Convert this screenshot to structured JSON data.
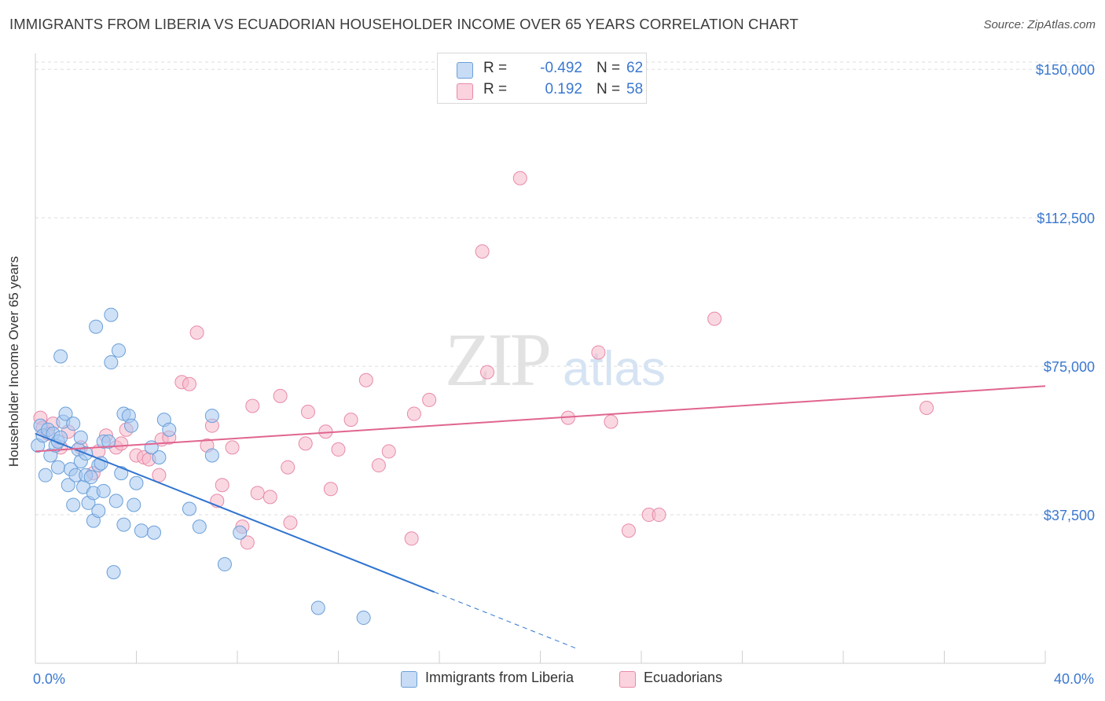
{
  "title": "IMMIGRANTS FROM LIBERIA VS ECUADORIAN HOUSEHOLDER INCOME OVER 65 YEARS CORRELATION CHART",
  "source": "Source: ZipAtlas.com",
  "watermark": {
    "zip": "ZIP",
    "atlas": "atlas"
  },
  "legend": {
    "r_label": "R =",
    "n_label": "N =",
    "rows": [
      {
        "r": "-0.492",
        "n": "62",
        "color": "#a8c8f0"
      },
      {
        "r": "0.192",
        "n": "58",
        "color": "#f6b8cb"
      }
    ]
  },
  "colors": {
    "blue_fill": "#a8c8f0",
    "blue_stroke": "#6a9fd8",
    "blue_line": "#2f74d0",
    "pink_fill": "#f6b8cb",
    "pink_stroke": "#e88aa8",
    "pink_line": "#e0658f",
    "tick_label": "#3b78d0",
    "grid": "#dddddd"
  },
  "chart_data": {
    "type": "scatter",
    "title": "IMMIGRANTS FROM LIBERIA VS ECUADORIAN HOUSEHOLDER INCOME OVER 65 YEARS CORRELATION CHART",
    "xlabel": "",
    "ylabel": "Householder Income Over 65 years",
    "xlim": [
      0,
      40
    ],
    "ylim": [
      0,
      155000
    ],
    "x_tick_labels": [
      {
        "value": 0,
        "label": "0.0%"
      },
      {
        "value": 40,
        "label": "40.0%"
      }
    ],
    "y_ticks": [
      {
        "value": 37500,
        "label": "$37,500"
      },
      {
        "value": 75000,
        "label": "$75,000"
      },
      {
        "value": 112500,
        "label": "$112,500"
      },
      {
        "value": 150000,
        "label": "$150,000"
      }
    ],
    "grid": true,
    "legend_position": "top-center",
    "series": [
      {
        "name": "Immigrants from Liberia",
        "color": "#a8c8f0",
        "trend": {
          "x1": 0,
          "y1": 58000,
          "x2": 15.8,
          "y2": 18000,
          "dash_to_x": 21.5
        },
        "points": [
          [
            0.1,
            55000
          ],
          [
            0.2,
            60000
          ],
          [
            0.3,
            57500
          ],
          [
            0.4,
            47500
          ],
          [
            0.5,
            59000
          ],
          [
            0.6,
            52500
          ],
          [
            0.7,
            58000
          ],
          [
            0.8,
            55000
          ],
          [
            0.9,
            56000
          ],
          [
            0.9,
            49500
          ],
          [
            1.0,
            77500
          ],
          [
            1.1,
            61000
          ],
          [
            1.2,
            63000
          ],
          [
            1.3,
            45000
          ],
          [
            1.4,
            49000
          ],
          [
            1.5,
            40000
          ],
          [
            1.5,
            60500
          ],
          [
            1.6,
            47500
          ],
          [
            1.7,
            54000
          ],
          [
            1.8,
            51000
          ],
          [
            1.8,
            57000
          ],
          [
            1.9,
            44500
          ],
          [
            2.0,
            47500
          ],
          [
            2.1,
            40500
          ],
          [
            2.2,
            47000
          ],
          [
            2.3,
            43000
          ],
          [
            2.3,
            36000
          ],
          [
            2.4,
            85000
          ],
          [
            2.5,
            50000
          ],
          [
            2.5,
            38500
          ],
          [
            2.6,
            50500
          ],
          [
            2.7,
            43500
          ],
          [
            2.7,
            56000
          ],
          [
            2.9,
            56000
          ],
          [
            3.0,
            88000
          ],
          [
            3.0,
            76000
          ],
          [
            3.1,
            23000
          ],
          [
            3.2,
            41000
          ],
          [
            3.3,
            79000
          ],
          [
            3.4,
            48000
          ],
          [
            3.5,
            63000
          ],
          [
            3.5,
            35000
          ],
          [
            3.7,
            62500
          ],
          [
            3.8,
            60000
          ],
          [
            3.9,
            40000
          ],
          [
            4.0,
            45500
          ],
          [
            4.2,
            33500
          ],
          [
            4.7,
            33000
          ],
          [
            4.9,
            52000
          ],
          [
            5.1,
            61500
          ],
          [
            5.3,
            59000
          ],
          [
            4.6,
            54500
          ],
          [
            6.1,
            39000
          ],
          [
            6.5,
            34500
          ],
          [
            7.0,
            62500
          ],
          [
            7.0,
            52500
          ],
          [
            7.5,
            25000
          ],
          [
            8.1,
            33000
          ],
          [
            11.2,
            14000
          ],
          [
            13.0,
            11500
          ],
          [
            1.0,
            57000
          ],
          [
            2.0,
            53000
          ]
        ]
      },
      {
        "name": "Ecuadorians",
        "color": "#f6b8cb",
        "trend": {
          "x1": 0,
          "y1": 53500,
          "x2": 40,
          "y2": 70000
        },
        "points": [
          [
            0.2,
            62000
          ],
          [
            0.3,
            59500
          ],
          [
            0.5,
            58000
          ],
          [
            0.7,
            60500
          ],
          [
            1.3,
            58500
          ],
          [
            1.8,
            54500
          ],
          [
            2.3,
            48000
          ],
          [
            2.5,
            53500
          ],
          [
            2.8,
            57500
          ],
          [
            3.2,
            54500
          ],
          [
            3.4,
            55500
          ],
          [
            3.6,
            59000
          ],
          [
            4.0,
            52500
          ],
          [
            4.3,
            52000
          ],
          [
            4.5,
            51500
          ],
          [
            4.9,
            47500
          ],
          [
            5.0,
            56500
          ],
          [
            5.3,
            57000
          ],
          [
            5.8,
            71000
          ],
          [
            6.1,
            70500
          ],
          [
            6.4,
            83500
          ],
          [
            6.8,
            55000
          ],
          [
            7.0,
            60000
          ],
          [
            7.2,
            41000
          ],
          [
            7.4,
            45000
          ],
          [
            7.8,
            54500
          ],
          [
            8.2,
            34500
          ],
          [
            8.4,
            30500
          ],
          [
            8.6,
            65000
          ],
          [
            8.8,
            43000
          ],
          [
            9.3,
            42000
          ],
          [
            9.7,
            67500
          ],
          [
            10.0,
            49500
          ],
          [
            10.1,
            35500
          ],
          [
            10.7,
            55500
          ],
          [
            10.8,
            63500
          ],
          [
            11.5,
            58500
          ],
          [
            11.7,
            44000
          ],
          [
            12.0,
            54000
          ],
          [
            12.5,
            61500
          ],
          [
            13.1,
            71500
          ],
          [
            13.6,
            50000
          ],
          [
            14.0,
            53500
          ],
          [
            14.9,
            31500
          ],
          [
            15.0,
            63000
          ],
          [
            15.6,
            66500
          ],
          [
            17.9,
            73500
          ],
          [
            17.7,
            104000
          ],
          [
            19.2,
            122500
          ],
          [
            21.1,
            62000
          ],
          [
            22.3,
            78500
          ],
          [
            22.8,
            61000
          ],
          [
            23.5,
            33500
          ],
          [
            24.3,
            37500
          ],
          [
            24.7,
            37500
          ],
          [
            26.9,
            87000
          ],
          [
            35.3,
            64500
          ],
          [
            1.0,
            54500
          ]
        ]
      }
    ]
  },
  "bottom_legend": [
    {
      "label": "Immigrants from Liberia",
      "color": "#a8c8f0"
    },
    {
      "label": "Ecuadorians",
      "color": "#f6b8cb"
    }
  ]
}
